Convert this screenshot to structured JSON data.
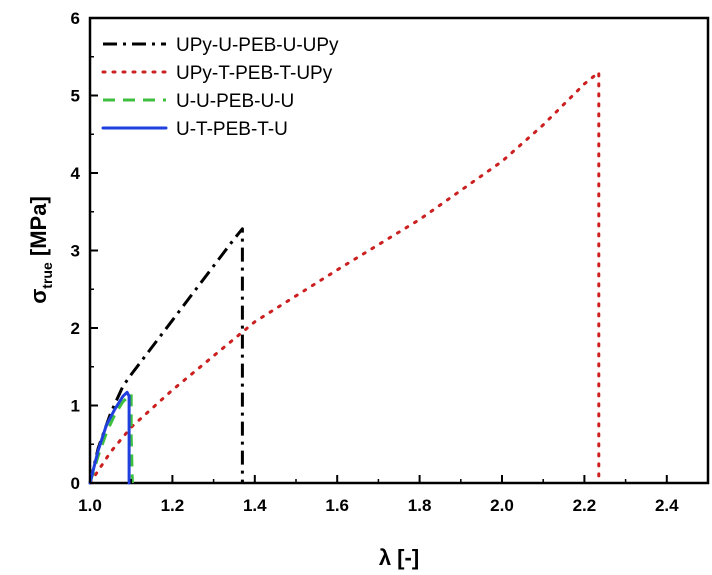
{
  "chart_data": {
    "type": "line",
    "xlabel": "λ [-]",
    "ylabel_main": "σ",
    "ylabel_sub": "true",
    "ylabel_unit": " [MPa]",
    "xlim": [
      1.0,
      2.5
    ],
    "ylim": [
      0,
      6
    ],
    "xticks": [
      1.0,
      1.2,
      1.4,
      1.6,
      1.8,
      2.0,
      2.2,
      2.4
    ],
    "xtick_labels": [
      "1.0",
      "1.2",
      "1.4",
      "1.6",
      "1.8",
      "2.0",
      "2.2",
      "2.4"
    ],
    "yticks": [
      0,
      1,
      2,
      3,
      4,
      5,
      6
    ],
    "ytick_labels": [
      "0",
      "1",
      "2",
      "3",
      "4",
      "5",
      "6"
    ],
    "grid": false,
    "legend_position": "top-left",
    "series": [
      {
        "name": "UPy-U-PEB-U-UPy",
        "color": "#000000",
        "style": "dashdot",
        "x": [
          1.0,
          1.02,
          1.05,
          1.08,
          1.1,
          1.15,
          1.2,
          1.25,
          1.3,
          1.35,
          1.37,
          1.37,
          1.37
        ],
        "y": [
          0.0,
          0.45,
          0.9,
          1.25,
          1.4,
          1.75,
          2.1,
          2.45,
          2.8,
          3.15,
          3.28,
          1.5,
          0.0
        ]
      },
      {
        "name": "UPy-T-PEB-T-UPy",
        "color": "#cc1f1f",
        "style": "dotted",
        "x": [
          1.0,
          1.05,
          1.1,
          1.2,
          1.4,
          1.6,
          1.8,
          2.0,
          2.1,
          2.2,
          2.235,
          2.235
        ],
        "y": [
          0.0,
          0.4,
          0.72,
          1.2,
          2.08,
          2.75,
          3.4,
          4.15,
          4.62,
          5.15,
          5.3,
          0.0
        ]
      },
      {
        "name": "U-U-PEB-U-U",
        "color": "#3fbf3f",
        "style": "dashed",
        "x": [
          1.0,
          1.02,
          1.04,
          1.06,
          1.08,
          1.09,
          1.1,
          1.1,
          1.103
        ],
        "y": [
          0.0,
          0.35,
          0.65,
          0.88,
          1.05,
          1.1,
          1.15,
          0.6,
          0.0
        ]
      },
      {
        "name": "U-T-PEB-T-U",
        "color": "#1f3fdf",
        "style": "solid",
        "x": [
          1.0,
          1.02,
          1.04,
          1.06,
          1.08,
          1.09,
          1.095,
          1.095
        ],
        "y": [
          0.0,
          0.42,
          0.75,
          0.95,
          1.12,
          1.17,
          1.12,
          0.0
        ]
      }
    ]
  }
}
